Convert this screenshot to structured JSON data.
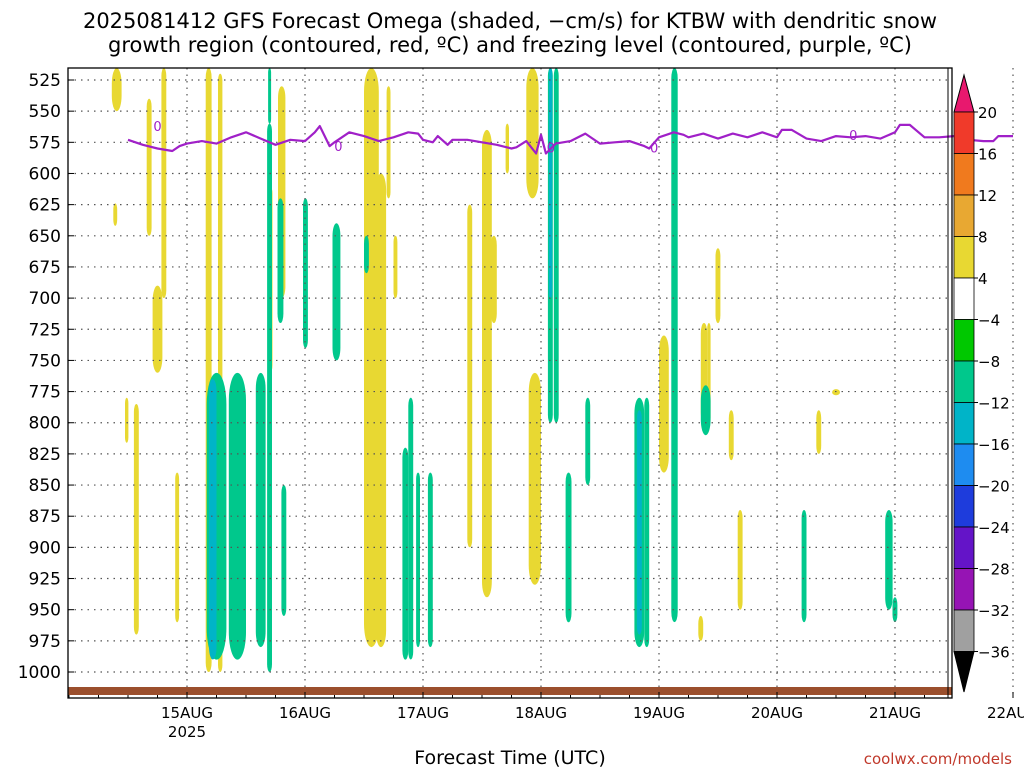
{
  "chart_data": {
    "type": "heatmap",
    "title_lines": [
      "2025081412 GFS Forecast Omega (shaded, −cm/s) for KTBW with dendritic snow",
      "growth region (contoured, red, ºC) and freezing level (contoured, purple, ºC)"
    ],
    "xlabel": "Forecast Time (UTC)",
    "ylabel": "",
    "credit": "coolwx.com/models",
    "y_axis": {
      "ticks": [
        525,
        550,
        575,
        600,
        625,
        650,
        675,
        700,
        725,
        750,
        775,
        800,
        825,
        850,
        875,
        900,
        925,
        950,
        975,
        1000
      ],
      "ylim": [
        515,
        1018
      ],
      "reversed": true,
      "units": "hPa"
    },
    "x_axis": {
      "ticks": [
        {
          "hour": 12,
          "label": "15AUG",
          "sublabel": "2025"
        },
        {
          "hour": 36,
          "label": "16AUG",
          "sublabel": ""
        },
        {
          "hour": 60,
          "label": "17AUG",
          "sublabel": ""
        },
        {
          "hour": 84,
          "label": "18AUG",
          "sublabel": ""
        },
        {
          "hour": 108,
          "label": "19AUG",
          "sublabel": ""
        },
        {
          "hour": 132,
          "label": "20AUG",
          "sublabel": ""
        },
        {
          "hour": 156,
          "label": "21AUG",
          "sublabel": ""
        },
        {
          "hour": 180,
          "label": "22AUG",
          "sublabel": ""
        }
      ],
      "xlim": [
        0,
        180
      ],
      "units": "forecast hour"
    },
    "grid": true,
    "colorbar": {
      "labels": [
        "20",
        "16",
        "12",
        "8",
        "4",
        "−4",
        "−8",
        "−12",
        "−16",
        "−20",
        "−24",
        "−28",
        "−32",
        "−36"
      ],
      "colors": [
        "#e8186e",
        "#f03a2a",
        "#f07a1e",
        "#e8a832",
        "#e8d832",
        "#ffffff",
        "#00c800",
        "#00c88c",
        "#00b4c8",
        "#1e8cf0",
        "#1e3cdc",
        "#6414c8",
        "#9614b4",
        "#a0a0a0",
        "#000000"
      ]
    },
    "freezing_level_contour": {
      "label": "0",
      "color": "#a020c8"
    },
    "dgz_contour": {
      "color": "#c80000"
    },
    "surface_color": "#9b4f2d",
    "freezing_level": {
      "x": [
        0,
        3,
        6,
        9,
        10.5,
        12,
        15,
        18,
        21,
        24,
        27,
        30,
        33,
        36,
        38,
        39,
        41,
        42,
        45,
        48,
        51,
        54,
        57,
        59,
        60,
        62,
        63,
        65,
        66,
        69,
        72,
        75,
        78,
        79,
        81,
        83,
        84,
        85,
        87,
        90,
        93,
        96,
        99,
        102,
        105,
        106,
        108,
        111,
        113,
        114,
        117,
        120,
        123,
        126,
        129,
        132,
        133,
        135,
        138,
        141,
        144,
        147,
        150,
        153,
        156,
        157,
        159,
        162,
        165,
        168,
        171,
        174,
        176,
        177,
        180
      ],
      "y": [
        573,
        577,
        580,
        582,
        578,
        576,
        574,
        576,
        571,
        567,
        572,
        577,
        573,
        574,
        567,
        562,
        578,
        575,
        567,
        570,
        574,
        571,
        567,
        568,
        573,
        575,
        570,
        577,
        573,
        573,
        575,
        577,
        580,
        579,
        574,
        584,
        569,
        584,
        576,
        574,
        568,
        576,
        575,
        574,
        578,
        580,
        571,
        567,
        569,
        571,
        568,
        572,
        568,
        571,
        567,
        571,
        565,
        565,
        572,
        574,
        570,
        571,
        570,
        572,
        567,
        561,
        561,
        571,
        571,
        570,
        573,
        574,
        574,
        570,
        570
      ]
    },
    "omega_cells": [
      {
        "x": [
          -0.6,
          0.1
        ],
        "y": [
          780,
          816
        ],
        "value": 5
      },
      {
        "x": [
          -3.0,
          -2.2
        ],
        "y": [
          624,
          642
        ],
        "value": 5
      },
      {
        "x": [
          -3.3,
          -1.3
        ],
        "y": [
          512,
          550
        ],
        "value": 5
      },
      {
        "x": [
          5.0,
          7.0
        ],
        "y": [
          690,
          760
        ],
        "value": 5
      },
      {
        "x": [
          6.8,
          7.8
        ],
        "y": [
          512,
          700
        ],
        "value": 5
      },
      {
        "x": [
          3.8,
          4.8
        ],
        "y": [
          540,
          650
        ],
        "value": 6
      },
      {
        "x": [
          1.2,
          2.2
        ],
        "y": [
          785,
          970
        ],
        "value": 5
      },
      {
        "x": [
          15.8,
          17.0
        ],
        "y": [
          515,
          1000
        ],
        "value": 6
      },
      {
        "x": [
          18.3,
          19.2
        ],
        "y": [
          520,
          1000
        ],
        "value": 5
      },
      {
        "x": [
          9.6,
          10.4
        ],
        "y": [
          840,
          960
        ],
        "value": 5
      },
      {
        "x": [
          28.4,
          29.4
        ],
        "y": [
          610,
          760
        ],
        "value": 5
      },
      {
        "x": [
          30.5,
          32.0
        ],
        "y": [
          530,
          700
        ],
        "value": 6
      },
      {
        "x": [
          48.0,
          51.0
        ],
        "y": [
          513,
          980
        ],
        "value": 6
      },
      {
        "x": [
          50.4,
          52.5
        ],
        "y": [
          600,
          980
        ],
        "value": 7
      },
      {
        "x": [
          48.2,
          49.2
        ],
        "y": [
          840,
          960
        ],
        "value": 5
      },
      {
        "x": [
          52.6,
          53.4
        ],
        "y": [
          530,
          620
        ],
        "value": 5
      },
      {
        "x": [
          54.0,
          54.8
        ],
        "y": [
          650,
          700
        ],
        "value": 5
      },
      {
        "x": [
          69.0,
          70.0
        ],
        "y": [
          625,
          900
        ],
        "value": 5
      },
      {
        "x": [
          72.0,
          74.0
        ],
        "y": [
          565,
          940
        ],
        "value": 5
      },
      {
        "x": [
          76.8,
          77.5
        ],
        "y": [
          560,
          600
        ],
        "value": 5
      },
      {
        "x": [
          81.0,
          83.5
        ],
        "y": [
          510,
          620
        ],
        "value": 6
      },
      {
        "x": [
          73.8,
          75.0
        ],
        "y": [
          650,
          720
        ],
        "value": 5
      },
      {
        "x": [
          81.5,
          84.0
        ],
        "y": [
          760,
          930
        ],
        "value": 5
      },
      {
        "x": [
          108.0,
          110.0
        ],
        "y": [
          730,
          840
        ],
        "value": 5
      },
      {
        "x": [
          116.5,
          117.8
        ],
        "y": [
          720,
          800
        ],
        "value": 6
      },
      {
        "x": [
          117.8,
          118.5
        ],
        "y": [
          720,
          800
        ],
        "value": 6
      },
      {
        "x": [
          119.5,
          120.5
        ],
        "y": [
          660,
          720
        ],
        "value": 5
      },
      {
        "x": [
          122.2,
          123.2
        ],
        "y": [
          790,
          830
        ],
        "value": 5
      },
      {
        "x": [
          124.0,
          125.0
        ],
        "y": [
          870,
          950
        ],
        "value": 5
      },
      {
        "x": [
          116.0,
          117.0
        ],
        "y": [
          955,
          975
        ],
        "value": 5
      },
      {
        "x": [
          140.0,
          141.0
        ],
        "y": [
          790,
          825
        ],
        "value": 5
      },
      {
        "x": [
          143.2,
          144.8
        ],
        "y": [
          773,
          778
        ],
        "value": 5
      },
      {
        "x": [
          170.0,
          171.0
        ],
        "y": [
          745,
          755
        ],
        "value": 5
      },
      {
        "x": [
          20.5,
          24.0
        ],
        "y": [
          760,
          990
        ],
        "value": -8
      },
      {
        "x": [
          16.0,
          20.0
        ],
        "y": [
          760,
          990
        ],
        "value": -10
      },
      {
        "x": [
          16.5,
          18.0
        ],
        "y": [
          765,
          990
        ],
        "value": -13
      },
      {
        "x": [
          26.0,
          28.0
        ],
        "y": [
          760,
          980
        ],
        "value": -8
      },
      {
        "x": [
          28.3,
          29.3
        ],
        "y": [
          560,
          1000
        ],
        "value": -8
      },
      {
        "x": [
          31.2,
          32.2
        ],
        "y": [
          850,
          955
        ],
        "value": -8
      },
      {
        "x": [
          28.5,
          29.1
        ],
        "y": [
          515,
          560
        ],
        "value": -8
      },
      {
        "x": [
          30.4,
          31.6
        ],
        "y": [
          620,
          720
        ],
        "value": -8
      },
      {
        "x": [
          35.6,
          36.6
        ],
        "y": [
          620,
          740
        ],
        "value": -8
      },
      {
        "x": [
          41.6,
          43.2
        ],
        "y": [
          640,
          750
        ],
        "value": -8
      },
      {
        "x": [
          41.8,
          43.0
        ],
        "y": [
          650,
          700
        ],
        "value": -10
      },
      {
        "x": [
          55.8,
          57.0
        ],
        "y": [
          820,
          990
        ],
        "value": -8
      },
      {
        "x": [
          57.0,
          58.0
        ],
        "y": [
          780,
          990
        ],
        "value": -8
      },
      {
        "x": [
          58.6,
          59.4
        ],
        "y": [
          840,
          980
        ],
        "value": -10
      },
      {
        "x": [
          61.0,
          62.0
        ],
        "y": [
          840,
          980
        ],
        "value": -8
      },
      {
        "x": [
          48.0,
          49.0
        ],
        "y": [
          650,
          680
        ],
        "value": -8
      },
      {
        "x": [
          85.4,
          86.4
        ],
        "y": [
          510,
          800
        ],
        "value": -10
      },
      {
        "x": [
          85.6,
          86.3
        ],
        "y": [
          510,
          700
        ],
        "value": -14
      },
      {
        "x": [
          86.6,
          87.6
        ],
        "y": [
          510,
          800
        ],
        "value": -8
      },
      {
        "x": [
          89.0,
          90.2
        ],
        "y": [
          840,
          960
        ],
        "value": -8
      },
      {
        "x": [
          93.0,
          94.0
        ],
        "y": [
          780,
          850
        ],
        "value": -8
      },
      {
        "x": [
          103.0,
          105.0
        ],
        "y": [
          780,
          980
        ],
        "value": -10
      },
      {
        "x": [
          103.5,
          104.5
        ],
        "y": [
          790,
          970
        ],
        "value": -12
      },
      {
        "x": [
          105.0,
          106.0
        ],
        "y": [
          780,
          980
        ],
        "value": -8
      },
      {
        "x": [
          110.5,
          111.8
        ],
        "y": [
          510,
          960
        ],
        "value": -8
      },
      {
        "x": [
          116.5,
          118.5
        ],
        "y": [
          770,
          810
        ],
        "value": -8
      },
      {
        "x": [
          137.0,
          138.0
        ],
        "y": [
          870,
          960
        ],
        "value": -8
      },
      {
        "x": [
          154.0,
          155.5
        ],
        "y": [
          870,
          950
        ],
        "value": -8
      },
      {
        "x": [
          155.5,
          156.5
        ],
        "y": [
          940,
          960
        ],
        "value": -8
      },
      {
        "x": [
          173.0,
          175.0
        ],
        "y": [
          805,
          895
        ],
        "value": -8
      },
      {
        "x": [
          176.0,
          178.0
        ],
        "y": [
          910,
          945
        ],
        "value": -8
      }
    ]
  }
}
